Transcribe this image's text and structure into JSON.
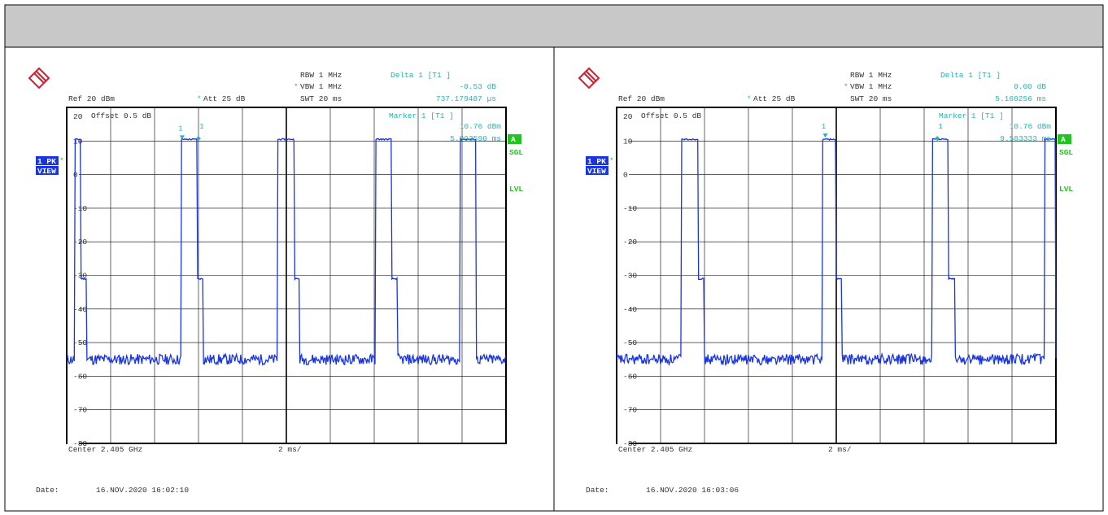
{
  "colors": {
    "trace": "#1a35e0",
    "marker": "#2ab0b0",
    "badge_green": "#22c422",
    "badge_blue": "#1a35e0",
    "header_bar": "#c8c8c8"
  },
  "icons": {
    "logo": "rohde-schwarz-logo-icon"
  },
  "panels": [
    {
      "rbw": "RBW 1 MHz",
      "vbw_star": "*",
      "vbw": "VBW 1 MHz",
      "swt": "SWT 20 ms",
      "ref": "Ref  20 dBm",
      "att_star": "*",
      "att": "Att  25 dB",
      "delta_title": "Delta 1 [T1 ]",
      "delta_level": "-0.53 dB",
      "delta_time": "737.179487 µs",
      "marker_title": "Marker 1 [T1 ]",
      "marker_level": "10.76 dBm",
      "marker_time": "5.993590 ms",
      "offset": "Offset   0.5 dB",
      "top_label": "20",
      "trace_badge": "1 PK",
      "view_badge": "VIEW",
      "badge_a": "A",
      "sgl": "SGL",
      "lvl": "LVL",
      "marker_labels": [
        "1",
        "1"
      ],
      "center": "Center 2.405 GHz",
      "span": "2 ms/",
      "date_label": "Date:",
      "date": "16.NOV.2020  16:02:10"
    },
    {
      "rbw": "RBW 1 MHz",
      "vbw_star": "*",
      "vbw": "VBW 1 MHz",
      "swt": "SWT 20 ms",
      "ref": "Ref  20 dBm",
      "att_star": "*",
      "att": "Att  25 dB",
      "delta_title": "Delta 1 [T1 ]",
      "delta_level": "0.00 dB",
      "delta_time": "5.160256 ms",
      "marker_title": "Marker 1 [T1 ]",
      "marker_level": "10.76 dBm",
      "marker_time": "9.583333 ms",
      "offset": "Offset   0.5 dB",
      "top_label": "20",
      "trace_badge": "1 PK",
      "view_badge": "VIEW",
      "badge_a": "A",
      "sgl": "SGL",
      "lvl": "LVL",
      "marker_labels": [
        "1",
        "1"
      ],
      "center": "Center 2.405 GHz",
      "span": "2 ms/",
      "date_label": "Date:",
      "date": "16.NOV.2020  16:03:06"
    }
  ],
  "chart_data": [
    {
      "type": "line",
      "xlabel": "Center 2.405 GHz",
      "x_per_div": "2 ms/",
      "ylim": [
        -80,
        20
      ],
      "xlim": [
        0,
        20
      ],
      "y_tick_labels": [
        "10",
        "0",
        "-10",
        "-20",
        "-30",
        "-40",
        "-50",
        "-60",
        "-70",
        "-80"
      ],
      "y_ticks": [
        10,
        0,
        -10,
        -20,
        -30,
        -40,
        -50,
        -60,
        -70,
        -80
      ],
      "noise_floor": -55,
      "series": [
        {
          "segments": [
            {
              "from": 0.35,
              "to": 0.65,
              "level": 10.5
            },
            {
              "from": 0.65,
              "to": 0.9,
              "level": -31
            },
            {
              "from": 5.2,
              "to": 5.95,
              "level": 10.5
            },
            {
              "from": 5.95,
              "to": 6.2,
              "level": -31
            },
            {
              "from": 9.6,
              "to": 10.35,
              "level": 10.5
            },
            {
              "from": 10.35,
              "to": 10.6,
              "level": -31
            },
            {
              "from": 14.05,
              "to": 14.8,
              "level": 10.5
            },
            {
              "from": 14.8,
              "to": 15.05,
              "level": -31
            },
            {
              "from": 17.9,
              "to": 18.65,
              "level": 10.5
            }
          ]
        }
      ],
      "markers": [
        {
          "label": "1",
          "x": 5.256,
          "y": 10.23,
          "shape": "triangle-down"
        },
        {
          "label": "1",
          "x": 5.994,
          "y": 10.76,
          "shape": "diamond"
        }
      ]
    },
    {
      "type": "line",
      "xlabel": "Center 2.405 GHz",
      "x_per_div": "2 ms/",
      "ylim": [
        -80,
        20
      ],
      "xlim": [
        0,
        20
      ],
      "y_tick_labels": [
        "10",
        "0",
        "-10",
        "-20",
        "-30",
        "-40",
        "-50",
        "-60",
        "-70",
        "-80"
      ],
      "y_ticks": [
        10,
        0,
        -10,
        -20,
        -30,
        -40,
        -50,
        -60,
        -70,
        -80
      ],
      "noise_floor": -55,
      "series": [
        {
          "segments": [
            {
              "from": 2.95,
              "to": 3.7,
              "level": 10.5
            },
            {
              "from": 3.7,
              "to": 4.0,
              "level": -31
            },
            {
              "from": 9.35,
              "to": 10.0,
              "level": 10.5
            },
            {
              "from": 10.0,
              "to": 10.25,
              "level": -31
            },
            {
              "from": 14.35,
              "to": 15.1,
              "level": 10.5
            },
            {
              "from": 15.1,
              "to": 15.4,
              "level": -31
            },
            {
              "from": 19.5,
              "to": 20.0,
              "level": 10.5
            }
          ]
        }
      ],
      "markers": [
        {
          "label": "1",
          "x": 9.5,
          "y": 10.76,
          "shape": "triangle-down"
        },
        {
          "label": "1",
          "x": 14.6,
          "y": 10.76,
          "shape": "diamond"
        }
      ]
    }
  ]
}
